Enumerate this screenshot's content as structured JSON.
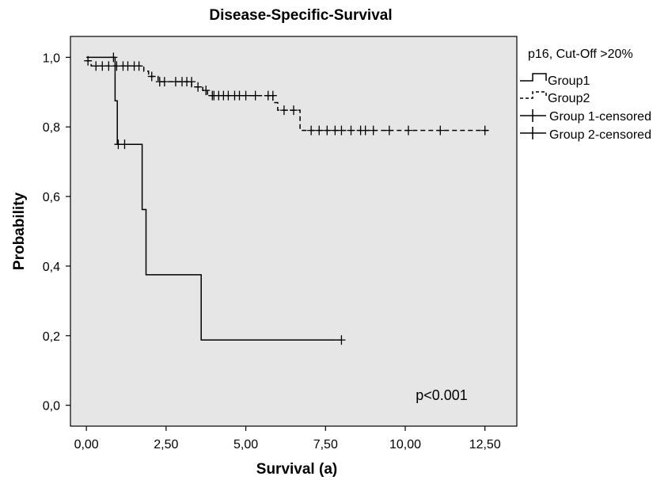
{
  "chart_data": {
    "type": "line",
    "subtype": "kaplan-meier step",
    "title": "Disease-Specific-Survival",
    "xlabel": "Survival (a)",
    "ylabel": "Probability",
    "xlim": [
      -0.5,
      13.5
    ],
    "ylim": [
      -0.06,
      1.06
    ],
    "x_ticks": [
      "0,00",
      "2,50",
      "5,00",
      "7,50",
      "10,00",
      "12,50"
    ],
    "x_tick_values": [
      0,
      2.5,
      5,
      7.5,
      10,
      12.5
    ],
    "y_ticks": [
      "0,0",
      "0,2",
      "0,4",
      "0,6",
      "0,8",
      "1,0"
    ],
    "y_tick_values": [
      0,
      0.2,
      0.4,
      0.6,
      0.8,
      1.0
    ],
    "grid": false,
    "plot_background": "#e6e6e6",
    "legend": {
      "title": "p16, Cut-Off >20%",
      "placement": "right",
      "entries": [
        "Group1",
        "Group2",
        "Group 1-censored",
        "Group 2-censored"
      ]
    },
    "annotation": "p<0.001",
    "series": [
      {
        "name": "Group1",
        "style": "solid",
        "color": "#000000",
        "steps": [
          [
            0,
            1.0
          ],
          [
            0.9,
            0.875
          ],
          [
            0.97,
            0.75
          ],
          [
            1.75,
            0.5625
          ],
          [
            1.87,
            0.375
          ],
          [
            3.6,
            0.1875
          ],
          [
            8.0,
            0.1875
          ]
        ],
        "censored": [
          [
            0.85,
            1.0
          ],
          [
            1.0,
            0.75
          ],
          [
            1.2,
            0.75
          ],
          [
            8.0,
            0.1875
          ]
        ]
      },
      {
        "name": "Group2",
        "style": "dashed",
        "color": "#000000",
        "steps": [
          [
            0,
            0.99
          ],
          [
            0.15,
            0.975
          ],
          [
            1.8,
            0.96
          ],
          [
            1.95,
            0.945
          ],
          [
            2.25,
            0.93
          ],
          [
            3.3,
            0.915
          ],
          [
            3.65,
            0.905
          ],
          [
            3.8,
            0.89
          ],
          [
            5.85,
            0.87
          ],
          [
            6.0,
            0.848
          ],
          [
            6.7,
            0.79
          ],
          [
            12.6,
            0.79
          ]
        ],
        "censored": [
          [
            0.05,
            0.99
          ],
          [
            0.3,
            0.975
          ],
          [
            0.5,
            0.975
          ],
          [
            0.7,
            0.975
          ],
          [
            0.95,
            0.975
          ],
          [
            1.15,
            0.975
          ],
          [
            1.3,
            0.975
          ],
          [
            1.5,
            0.975
          ],
          [
            1.65,
            0.975
          ],
          [
            2.05,
            0.945
          ],
          [
            2.3,
            0.93
          ],
          [
            2.45,
            0.93
          ],
          [
            2.8,
            0.93
          ],
          [
            3.0,
            0.93
          ],
          [
            3.15,
            0.93
          ],
          [
            3.3,
            0.93
          ],
          [
            3.5,
            0.915
          ],
          [
            3.75,
            0.905
          ],
          [
            3.95,
            0.89
          ],
          [
            4.0,
            0.89
          ],
          [
            4.15,
            0.89
          ],
          [
            4.3,
            0.89
          ],
          [
            4.45,
            0.89
          ],
          [
            4.65,
            0.89
          ],
          [
            4.8,
            0.89
          ],
          [
            5.0,
            0.89
          ],
          [
            5.3,
            0.89
          ],
          [
            5.7,
            0.89
          ],
          [
            5.85,
            0.89
          ],
          [
            6.2,
            0.848
          ],
          [
            6.5,
            0.848
          ],
          [
            7.05,
            0.79
          ],
          [
            7.3,
            0.79
          ],
          [
            7.55,
            0.79
          ],
          [
            7.8,
            0.79
          ],
          [
            8.0,
            0.79
          ],
          [
            8.3,
            0.79
          ],
          [
            8.6,
            0.79
          ],
          [
            8.75,
            0.79
          ],
          [
            9.0,
            0.79
          ],
          [
            9.5,
            0.79
          ],
          [
            10.1,
            0.79
          ],
          [
            11.1,
            0.79
          ],
          [
            12.5,
            0.79
          ]
        ]
      }
    ]
  }
}
